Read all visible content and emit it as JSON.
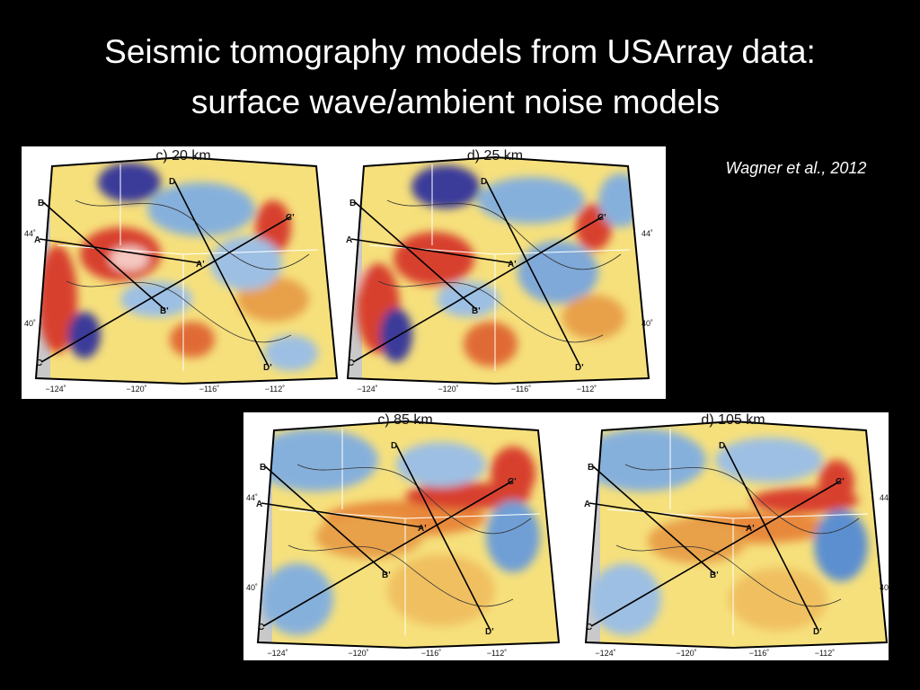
{
  "title": {
    "lines": [
      "Seismic tomography models from USArray data:",
      "surface wave/ambient noise models"
    ]
  },
  "citation": "Wagner et al., 2012",
  "figures": [
    {
      "panels": [
        {
          "label": "c) 20 km",
          "lon_labels": [
            "−124˚",
            "−120˚",
            "−116˚",
            "−112˚"
          ],
          "lat_labels": [
            "44˚",
            "40˚"
          ],
          "profile_labels": [
            "A",
            "A'",
            "B",
            "B'",
            "C",
            "C'",
            "D",
            "D'"
          ]
        },
        {
          "label": "d) 25 km",
          "lon_labels": [
            "−124˚",
            "−120˚",
            "−116˚",
            "−112˚"
          ],
          "lat_labels": [
            "44˚",
            "40˚"
          ],
          "profile_labels": [
            "A",
            "A'",
            "B",
            "B'",
            "C",
            "C'",
            "D",
            "D'"
          ]
        }
      ]
    },
    {
      "panels": [
        {
          "label": "c) 85 km",
          "lon_labels": [
            "−124˚",
            "−120˚",
            "−116˚",
            "−112˚"
          ],
          "lat_labels": [
            "44˚",
            "40˚"
          ],
          "profile_labels": [
            "A",
            "A'",
            "B",
            "B'",
            "C",
            "C'",
            "D",
            "D'"
          ]
        },
        {
          "label": "d) 105 km",
          "lon_labels": [
            "−124˚",
            "−120˚",
            "−116˚",
            "−112˚"
          ],
          "lat_labels": [
            "44˚",
            "40˚"
          ],
          "profile_labels": [
            "A",
            "A'",
            "B",
            "B'",
            "C",
            "C'",
            "D",
            "D'"
          ]
        }
      ]
    }
  ]
}
